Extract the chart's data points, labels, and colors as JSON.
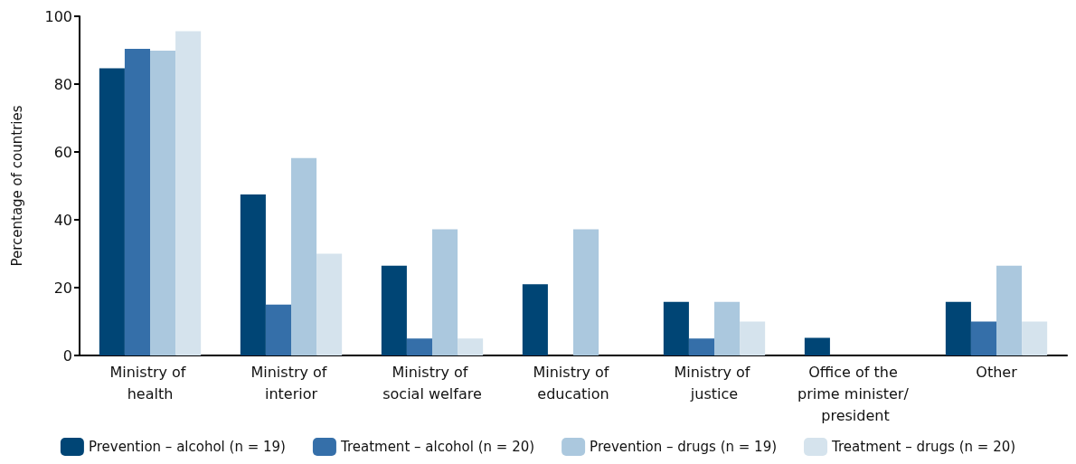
{
  "chart_data": {
    "type": "bar",
    "ylabel": "Percentage of countries",
    "categories": [
      "Ministry of health",
      "Ministry of interior",
      "Ministry of social welfare",
      "Ministry of education",
      "Ministry of justice",
      "Office of the prime minister/ president",
      "Other"
    ],
    "series": [
      {
        "name": "Prevention – alcohol (n = 19)",
        "color": "#004575",
        "values": [
          84.7,
          47.5,
          26.5,
          21,
          15.8,
          5.2,
          15.8
        ]
      },
      {
        "name": "Treatment – alcohol (n = 20)",
        "color": "#356fa9",
        "values": [
          90.4,
          15,
          5,
          0,
          5,
          0,
          10
        ]
      },
      {
        "name": "Prevention – drugs (n = 19)",
        "color": "#abc8de",
        "values": [
          89.9,
          58.2,
          37.2,
          37.2,
          15.8,
          0,
          26.5
        ]
      },
      {
        "name": "Treatment – drugs (n = 20)",
        "color": "#d5e3ed",
        "values": [
          95.6,
          30,
          5,
          0,
          10,
          0,
          10
        ]
      }
    ],
    "ylim": [
      0,
      100
    ],
    "yticks": [
      0,
      20,
      40,
      60,
      80,
      100
    ],
    "grid": false,
    "legend": "bottom"
  }
}
